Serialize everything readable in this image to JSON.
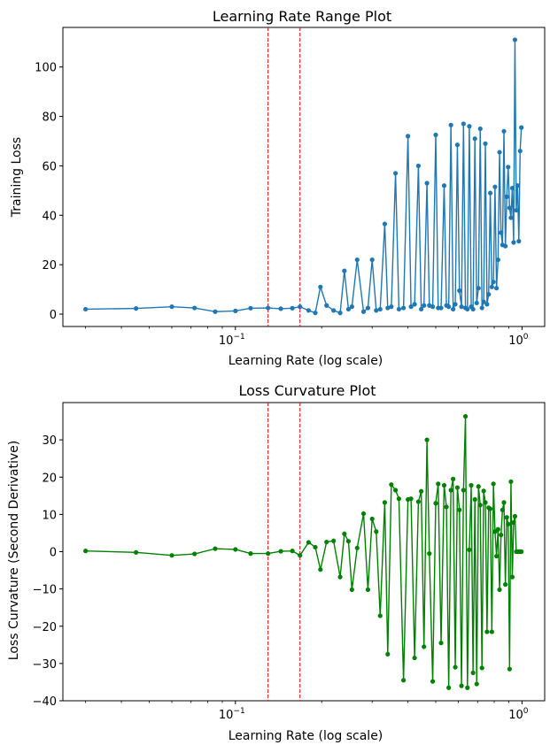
{
  "chart_data": [
    {
      "type": "line",
      "title": "Learning Rate Range Plot",
      "xlabel": "Learning Rate (log scale)",
      "ylabel": "Training Loss",
      "xscale": "log",
      "xlim": [
        0.025,
        1.2
      ],
      "ylim": [
        -5,
        116
      ],
      "xticks": [
        {
          "value": 0.1,
          "base": "10",
          "exp": "−1"
        },
        {
          "value": 1,
          "base": "10",
          "exp": "0"
        }
      ],
      "yticks": [
        "0",
        "20",
        "40",
        "60",
        "80",
        "100"
      ],
      "grid": false,
      "color": "#1f77b4",
      "vlines": [
        {
          "x": 0.13,
          "color": "#ff0000",
          "style": "dashed"
        },
        {
          "x": 0.168,
          "color": "#ff0000",
          "style": "dashed"
        }
      ],
      "series": [
        {
          "x": [
            0.03,
            0.045,
            0.06,
            0.072,
            0.085,
            0.1,
            0.113,
            0.13,
            0.144,
            0.158,
            0.168,
            0.18,
            0.19,
            0.198,
            0.208,
            0.22,
            0.232,
            0.24,
            0.248,
            0.255,
            0.266,
            0.28,
            0.29,
            0.3,
            0.31,
            0.32,
            0.332,
            0.34,
            0.35,
            0.362,
            0.372,
            0.386,
            0.4,
            0.41,
            0.422,
            0.435,
            0.445,
            0.455,
            0.466,
            0.475,
            0.488,
            0.5,
            0.51,
            0.522,
            0.535,
            0.545,
            0.555,
            0.565,
            0.575,
            0.585,
            0.595,
            0.605,
            0.615,
            0.625,
            0.635,
            0.645,
            0.655,
            0.665,
            0.675,
            0.685,
            0.695,
            0.705,
            0.715,
            0.725,
            0.735,
            0.745,
            0.755,
            0.765,
            0.775,
            0.785,
            0.795,
            0.805,
            0.815,
            0.825,
            0.835,
            0.845,
            0.855,
            0.865,
            0.875,
            0.885,
            0.895,
            0.905,
            0.915,
            0.925,
            0.935,
            0.945,
            0.955,
            0.965,
            0.975,
            0.985,
            0.995
          ],
          "y": [
            2.0,
            2.3,
            3.0,
            2.5,
            1.0,
            1.3,
            2.4,
            2.5,
            2.2,
            2.4,
            3.0,
            1.5,
            0.5,
            11.0,
            3.5,
            1.5,
            0.5,
            17.5,
            2.0,
            3.0,
            22.0,
            1.0,
            2.5,
            22.0,
            1.5,
            2.0,
            36.5,
            2.5,
            3.0,
            57.0,
            2.0,
            2.5,
            72.0,
            3.0,
            4.0,
            60.0,
            2.0,
            3.5,
            53.0,
            3.5,
            3.0,
            72.5,
            2.5,
            2.5,
            52.0,
            3.5,
            3.0,
            76.5,
            2.0,
            4.0,
            68.5,
            9.5,
            3.0,
            77.0,
            2.5,
            2.0,
            76.0,
            3.0,
            2.0,
            71.0,
            4.5,
            10.5,
            75.0,
            2.5,
            5.0,
            69.0,
            4.0,
            8.0,
            49.0,
            11.0,
            13.0,
            51.5,
            10.5,
            22.0,
            65.5,
            33.0,
            28.0,
            74.0,
            27.5,
            47.5,
            59.5,
            43.0,
            39.0,
            51.0,
            29.0,
            111.0,
            42.0,
            52.0,
            29.5,
            66.0,
            75.5
          ]
        }
      ]
    },
    {
      "type": "line",
      "title": "Loss Curvature Plot",
      "xlabel": "Learning Rate (log scale)",
      "ylabel": "Loss Curvature (Second Derivative)",
      "xscale": "log",
      "xlim": [
        0.025,
        1.2
      ],
      "ylim": [
        -40,
        40
      ],
      "xticks": [
        {
          "value": 0.1,
          "base": "10",
          "exp": "−1"
        },
        {
          "value": 1,
          "base": "10",
          "exp": "0"
        }
      ],
      "yticks": [
        "−40",
        "−30",
        "−20",
        "−10",
        "0",
        "10",
        "20",
        "30"
      ],
      "grid": false,
      "color": "#008000",
      "vlines": [
        {
          "x": 0.13,
          "color": "#ff0000",
          "style": "dashed"
        },
        {
          "x": 0.168,
          "color": "#ff0000",
          "style": "dashed"
        }
      ],
      "series": [
        {
          "x": [
            0.03,
            0.045,
            0.06,
            0.072,
            0.085,
            0.1,
            0.113,
            0.13,
            0.144,
            0.158,
            0.168,
            0.18,
            0.19,
            0.198,
            0.208,
            0.22,
            0.232,
            0.24,
            0.248,
            0.255,
            0.266,
            0.28,
            0.29,
            0.3,
            0.31,
            0.32,
            0.332,
            0.34,
            0.35,
            0.362,
            0.372,
            0.386,
            0.4,
            0.41,
            0.422,
            0.435,
            0.445,
            0.455,
            0.466,
            0.475,
            0.488,
            0.5,
            0.51,
            0.522,
            0.535,
            0.545,
            0.555,
            0.565,
            0.575,
            0.585,
            0.595,
            0.605,
            0.615,
            0.625,
            0.635,
            0.645,
            0.655,
            0.665,
            0.675,
            0.685,
            0.695,
            0.705,
            0.715,
            0.725,
            0.735,
            0.745,
            0.755,
            0.765,
            0.775,
            0.785,
            0.795,
            0.805,
            0.815,
            0.825,
            0.835,
            0.845,
            0.855,
            0.865,
            0.875,
            0.885,
            0.895,
            0.905,
            0.915,
            0.925,
            0.935,
            0.945,
            0.955,
            0.965,
            0.975,
            0.985,
            0.995
          ],
          "y": [
            0.2,
            -0.2,
            -1.0,
            -0.6,
            0.8,
            0.6,
            -0.5,
            -0.5,
            0.1,
            0.2,
            -1.0,
            2.5,
            1.2,
            -4.8,
            2.6,
            2.9,
            -6.8,
            4.8,
            2.8,
            -10.2,
            1.0,
            10.2,
            -10.2,
            8.8,
            5.4,
            -17.2,
            13.2,
            -27.5,
            18.0,
            16.5,
            14.2,
            -34.5,
            14.0,
            14.2,
            -28.5,
            13.4,
            16.2,
            -25.5,
            30.0,
            -0.5,
            -34.8,
            13.0,
            18.2,
            -24.5,
            17.8,
            12.0,
            -36.5,
            16.5,
            19.5,
            -31.0,
            17.2,
            11.2,
            -36.0,
            16.5,
            36.3,
            -36.5,
            0.5,
            17.8,
            -32.5,
            14.0,
            -35.5,
            17.5,
            12.5,
            -31.2,
            16.3,
            13.2,
            -21.5,
            11.8,
            11.5,
            -21.5,
            18.2,
            5.4,
            -1.2,
            6.0,
            -10.2,
            4.5,
            11.2,
            13.2,
            -8.8,
            9.2,
            7.4,
            -31.5,
            18.8,
            -6.8,
            7.8,
            9.5,
            0,
            0,
            0,
            0,
            0
          ]
        }
      ]
    }
  ]
}
